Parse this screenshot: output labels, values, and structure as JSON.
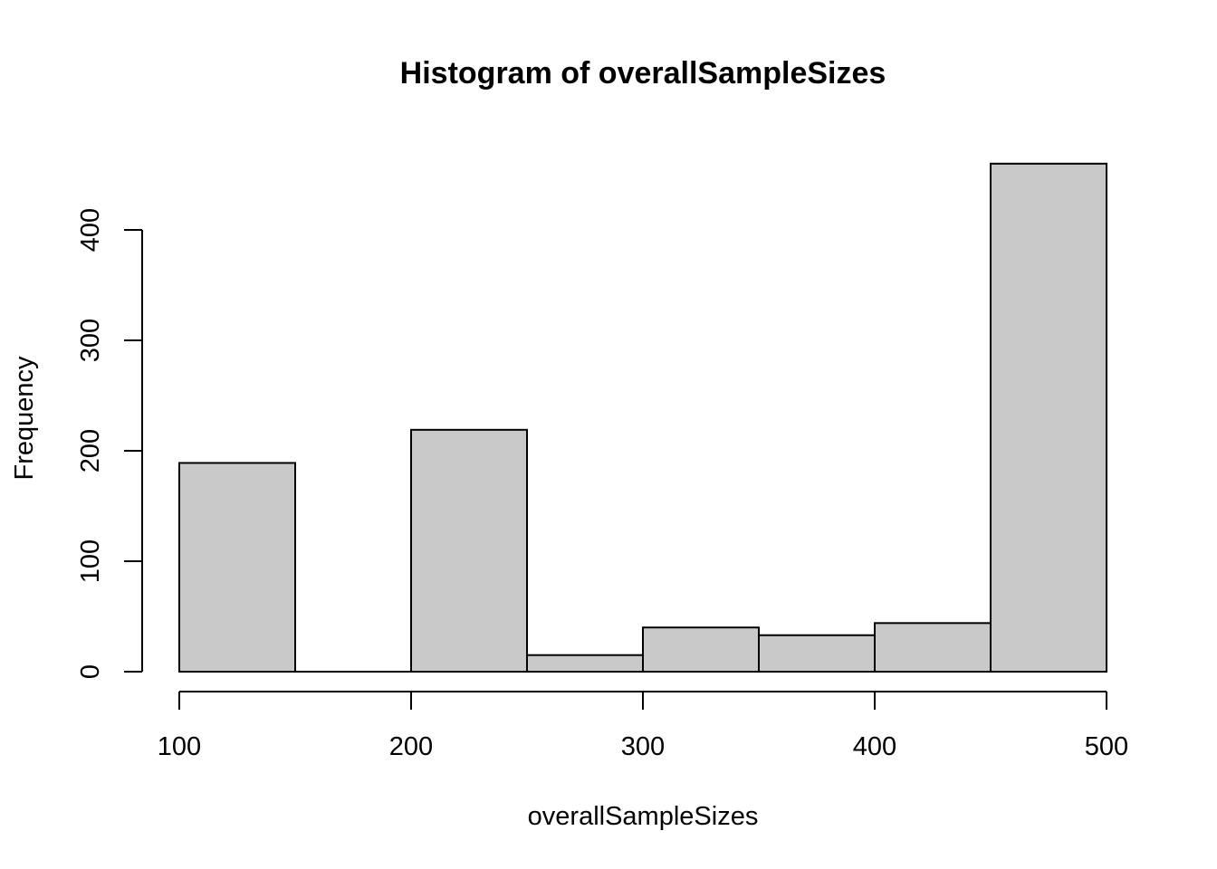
{
  "chart_data": {
    "type": "bar",
    "subtype": "histogram",
    "title": "Histogram of overallSampleSizes",
    "xlabel": "overallSampleSizes",
    "ylabel": "Frequency",
    "bins": [
      {
        "from": 100,
        "to": 150,
        "count": 189
      },
      {
        "from": 150,
        "to": 200,
        "count": 0
      },
      {
        "from": 200,
        "to": 250,
        "count": 219
      },
      {
        "from": 250,
        "to": 300,
        "count": 15
      },
      {
        "from": 300,
        "to": 350,
        "count": 40
      },
      {
        "from": 350,
        "to": 400,
        "count": 33
      },
      {
        "from": 400,
        "to": 450,
        "count": 44
      },
      {
        "from": 450,
        "to": 500,
        "count": 460
      }
    ],
    "xlim": [
      100,
      500
    ],
    "ylim": [
      0,
      460
    ],
    "x_ticks": [
      "100",
      "200",
      "300",
      "400",
      "500"
    ],
    "y_ticks": [
      "0",
      "100",
      "200",
      "300",
      "400"
    ],
    "grid": false,
    "legend": "none",
    "bar_color": "#c9c9c9",
    "border_color": "#000000"
  }
}
